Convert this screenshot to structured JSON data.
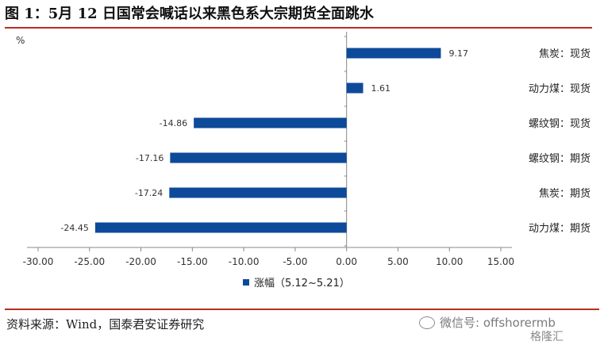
{
  "title": "图 1：5月 12 日国常会喊话以来黑色系大宗期货全面跳水",
  "source": "资料来源：Wind，国泰君安证券研究",
  "watermark": "微信号: offshorermb",
  "watermark2": "格隆汇",
  "colors": {
    "bar": "#0d4a9a",
    "rule": "#b8301e",
    "axis": "#888888"
  },
  "chart_data": {
    "type": "bar",
    "orientation": "horizontal",
    "unit_label": "%",
    "categories": [
      "焦炭：现货",
      "动力煤：现货",
      "螺纹钢：现货",
      "螺纹钢：期货",
      "焦炭：期货",
      "动力煤：期货"
    ],
    "series": [
      {
        "name": "涨幅（5.12~5.21）",
        "values": [
          9.17,
          1.61,
          -14.86,
          -17.16,
          -17.24,
          -24.45
        ]
      }
    ],
    "data_labels": [
      "9.17",
      "1.61",
      "-14.86",
      "-17.16",
      "-17.24",
      "-24.45"
    ],
    "xlim": [
      -30,
      15
    ],
    "xticks": [
      "-30.00",
      "-25.00",
      "-20.00",
      "-15.00",
      "-10.00",
      "-5.00",
      "0.00",
      "5.00",
      "10.00",
      "15.00"
    ],
    "xtick_values": [
      -30,
      -25,
      -20,
      -15,
      -10,
      -5,
      0,
      5,
      10,
      15
    ],
    "legend_position": "bottom",
    "grid": false
  }
}
